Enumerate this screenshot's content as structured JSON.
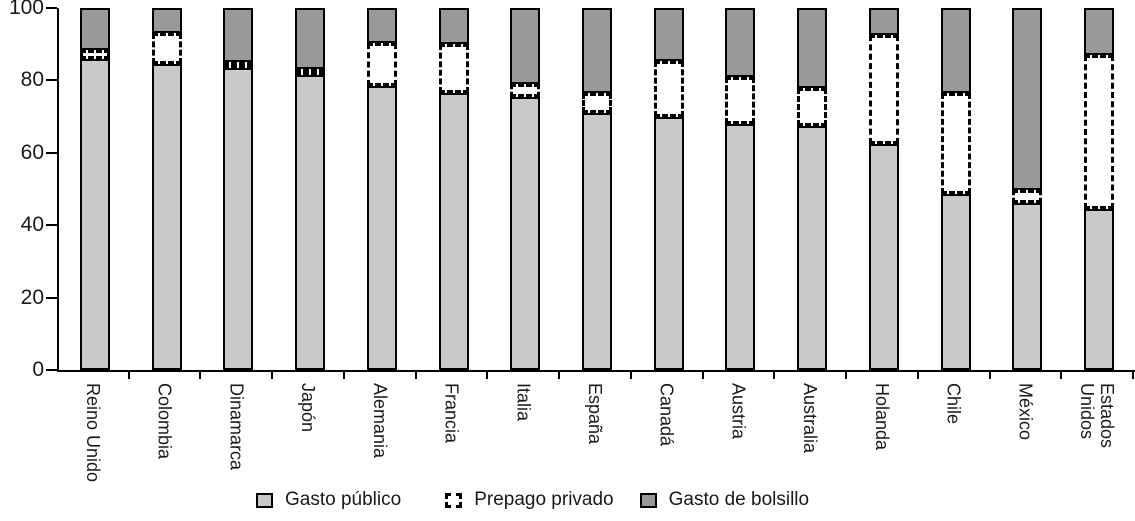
{
  "chart_data": {
    "type": "bar",
    "stacked": true,
    "title": "",
    "xlabel": "",
    "ylabel": "",
    "ylim": [
      0,
      100
    ],
    "yticks": [
      0,
      20,
      40,
      60,
      80,
      100
    ],
    "grid": false,
    "legend_position": "bottom",
    "categories": [
      "Reino Unido",
      "Colombia",
      "Dinamarca",
      "Japón",
      "Alemania",
      "Francia",
      "Italia",
      "España",
      "Canadá",
      "Austria",
      "Australia",
      "Holanda",
      "Chile",
      "México",
      "Estados\nUnidos"
    ],
    "series": [
      {
        "name": "Gasto público",
        "style": "solid-light",
        "color": "#c9c9c9",
        "values": [
          86,
          84.5,
          83.5,
          81.5,
          78.5,
          76.5,
          75.5,
          71,
          70,
          68,
          67.5,
          62.5,
          48.5,
          46,
          44.5
        ]
      },
      {
        "name": "Prepago privado",
        "style": "dashed-white",
        "color": "#ffffff",
        "values": [
          2.5,
          8.5,
          1,
          1.5,
          12,
          13.5,
          3.5,
          5.5,
          15.5,
          13,
          10.5,
          30,
          28,
          3.5,
          42.5
        ]
      },
      {
        "name": "Gasto de bolsillo",
        "style": "solid-dark",
        "color": "#999999",
        "values": [
          11.5,
          7,
          15.5,
          17,
          9.5,
          10,
          21,
          23.5,
          14.5,
          19,
          22,
          7.5,
          23.5,
          50.5,
          13
        ]
      }
    ]
  },
  "colors": {
    "axis": "#000000",
    "text": "#1a1a1a",
    "background": "#ffffff",
    "bar_light": "#c9c9c9",
    "bar_dark": "#999999"
  }
}
